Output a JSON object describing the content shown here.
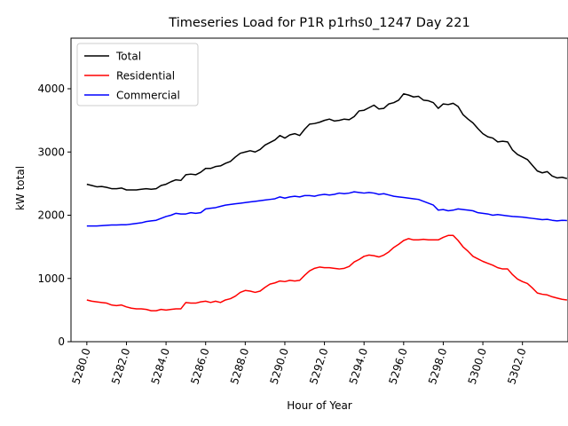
{
  "chart_data": {
    "type": "line",
    "title": "Timeseries Load for P1R p1rhs0_1247  Day 221",
    "xlabel": "Hour of Year",
    "ylabel": "kW total",
    "xlim": [
      5279.2,
      5304.3
    ],
    "ylim": [
      0,
      4800
    ],
    "x_start": 5280.0,
    "x_step": 0.25,
    "xticks": [
      5280,
      5282,
      5284,
      5286,
      5288,
      5290,
      5292,
      5294,
      5296,
      5298,
      5300,
      5302
    ],
    "xtick_labels": [
      "5280.0",
      "5282.0",
      "5284.0",
      "5286.0",
      "5288.0",
      "5290.0",
      "5292.0",
      "5294.0",
      "5296.0",
      "5298.0",
      "5300.0",
      "5302.0"
    ],
    "yticks": [
      0,
      1000,
      2000,
      3000,
      4000
    ],
    "ytick_labels": [
      "0",
      "1000",
      "2000",
      "3000",
      "4000"
    ],
    "grid": false,
    "legend_position": "upper-left",
    "series": [
      {
        "name": "Total",
        "color": "#000000",
        "values": [
          2490,
          2470,
          2450,
          2455,
          2440,
          2420,
          2420,
          2430,
          2400,
          2400,
          2400,
          2410,
          2420,
          2410,
          2420,
          2470,
          2490,
          2530,
          2560,
          2550,
          2640,
          2650,
          2640,
          2680,
          2740,
          2740,
          2770,
          2780,
          2820,
          2850,
          2920,
          2980,
          3000,
          3020,
          3000,
          3040,
          3110,
          3150,
          3190,
          3260,
          3220,
          3270,
          3290,
          3260,
          3360,
          3440,
          3450,
          3470,
          3500,
          3520,
          3490,
          3500,
          3520,
          3510,
          3560,
          3650,
          3660,
          3700,
          3740,
          3680,
          3690,
          3760,
          3780,
          3820,
          3920,
          3900,
          3870,
          3880,
          3820,
          3810,
          3780,
          3690,
          3760,
          3750,
          3770,
          3720,
          3590,
          3520,
          3460,
          3370,
          3290,
          3240,
          3220,
          3160,
          3170,
          3160,
          3030,
          2960,
          2920,
          2880,
          2790,
          2700,
          2670,
          2690,
          2620,
          2590,
          2600,
          2580
        ]
      },
      {
        "name": "Residential",
        "color": "#ff0000",
        "values": [
          660,
          640,
          630,
          620,
          610,
          580,
          570,
          580,
          550,
          530,
          520,
          520,
          510,
          490,
          490,
          510,
          500,
          510,
          520,
          520,
          620,
          610,
          610,
          630,
          640,
          620,
          640,
          620,
          660,
          680,
          720,
          780,
          810,
          800,
          780,
          800,
          860,
          910,
          930,
          960,
          950,
          970,
          960,
          970,
          1050,
          1120,
          1160,
          1180,
          1170,
          1170,
          1160,
          1150,
          1160,
          1190,
          1260,
          1300,
          1350,
          1370,
          1360,
          1340,
          1370,
          1420,
          1490,
          1540,
          1600,
          1630,
          1610,
          1610,
          1620,
          1610,
          1610,
          1610,
          1650,
          1680,
          1680,
          1600,
          1500,
          1430,
          1350,
          1310,
          1270,
          1240,
          1210,
          1170,
          1150,
          1150,
          1060,
          990,
          950,
          920,
          850,
          770,
          750,
          740,
          710,
          690,
          670,
          660
        ]
      },
      {
        "name": "Commercial",
        "color": "#0000ff",
        "values": [
          1830,
          1830,
          1830,
          1835,
          1840,
          1845,
          1845,
          1850,
          1850,
          1860,
          1870,
          1880,
          1900,
          1910,
          1920,
          1950,
          1980,
          2000,
          2030,
          2020,
          2020,
          2040,
          2030,
          2040,
          2100,
          2110,
          2120,
          2140,
          2160,
          2170,
          2180,
          2190,
          2200,
          2210,
          2220,
          2230,
          2240,
          2250,
          2260,
          2290,
          2270,
          2290,
          2300,
          2290,
          2310,
          2310,
          2300,
          2320,
          2330,
          2320,
          2330,
          2350,
          2340,
          2350,
          2370,
          2360,
          2350,
          2360,
          2350,
          2330,
          2340,
          2320,
          2300,
          2290,
          2280,
          2270,
          2260,
          2250,
          2220,
          2190,
          2160,
          2080,
          2090,
          2070,
          2080,
          2100,
          2090,
          2080,
          2070,
          2040,
          2030,
          2020,
          2000,
          2010,
          2000,
          1990,
          1980,
          1975,
          1970,
          1960,
          1950,
          1940,
          1930,
          1935,
          1920,
          1910,
          1920,
          1915
        ]
      }
    ]
  }
}
